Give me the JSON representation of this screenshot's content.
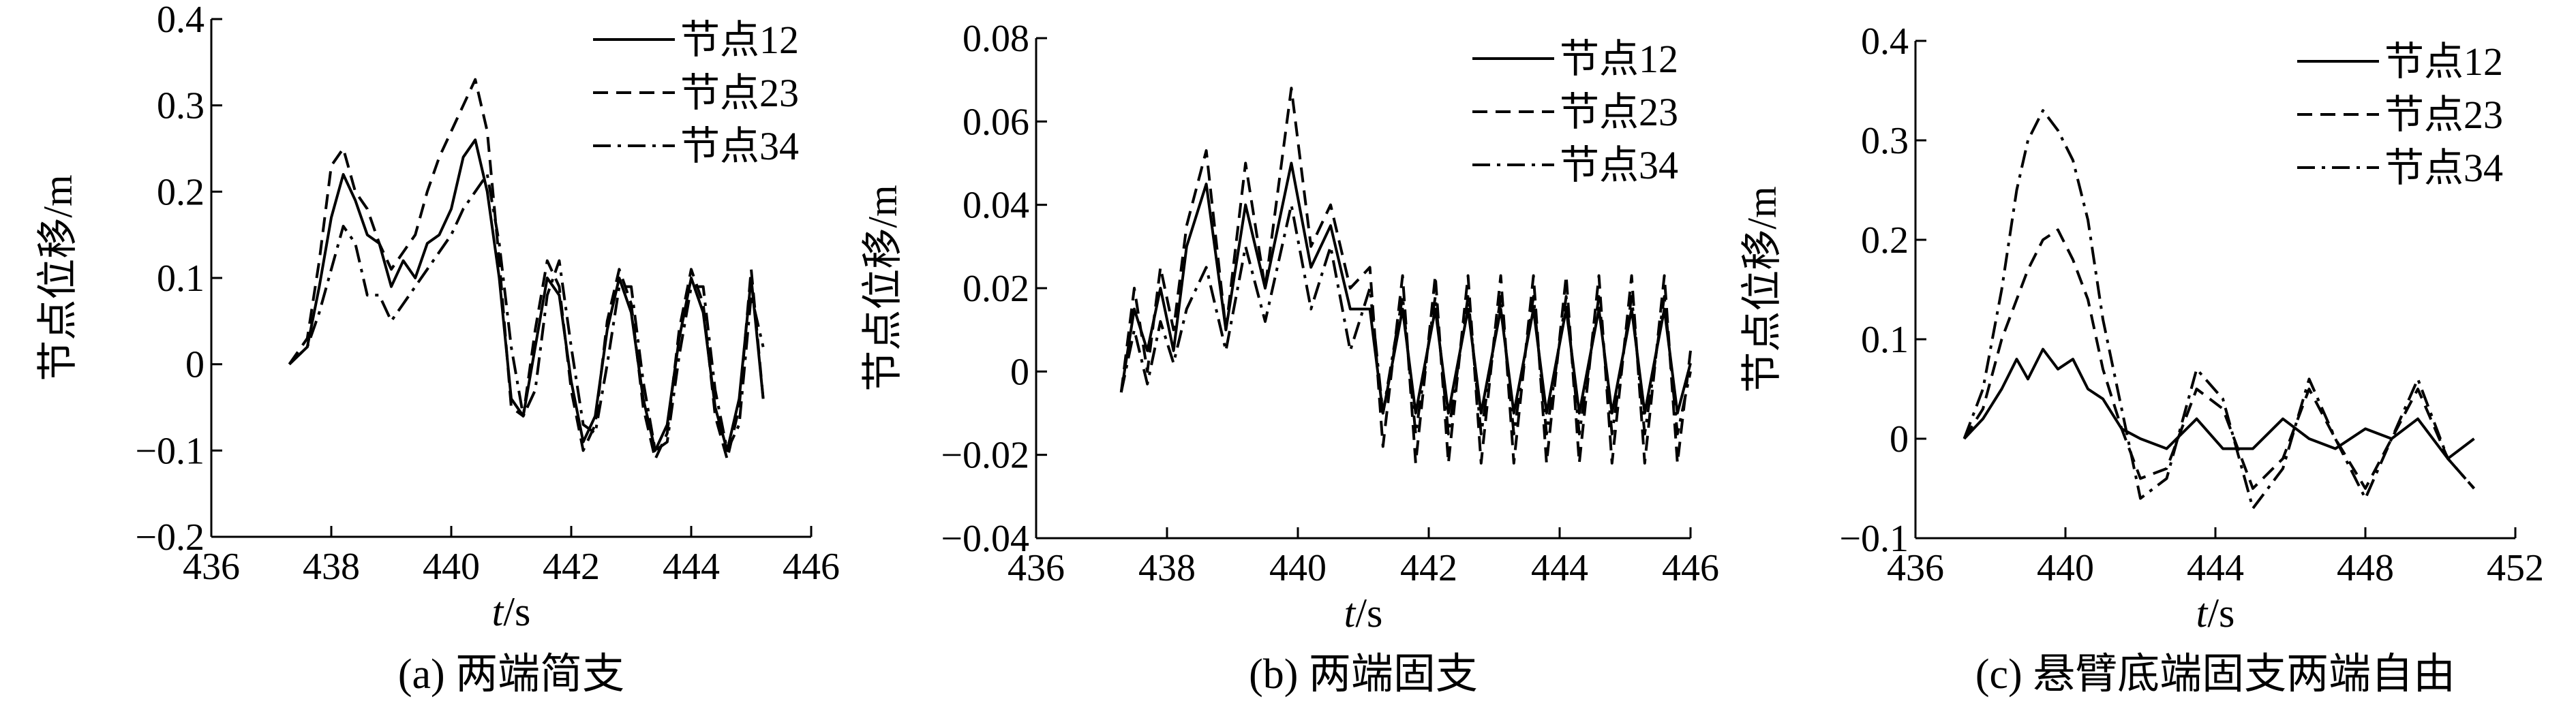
{
  "colors": {
    "ink": "#000000",
    "background": "#ffffff"
  },
  "chart_data": [
    {
      "type": "line",
      "caption": "(a) 两端简支",
      "xlabel_italic": "t",
      "xlabel_unit": "/s",
      "ylabel": "节点位移/m",
      "xlim": [
        436,
        446
      ],
      "ylim": [
        -0.2,
        0.4
      ],
      "xticks": [
        436,
        438,
        440,
        442,
        444,
        446
      ],
      "xtick_labels": [
        "436",
        "438",
        "440",
        "442",
        "444",
        "446"
      ],
      "yticks": [
        -0.2,
        -0.1,
        0,
        0.1,
        0.2,
        0.3,
        0.4
      ],
      "ytick_labels": [
        "−0.2",
        "−0.1",
        "0",
        "0.1",
        "0.2",
        "0.3",
        "0.4"
      ],
      "legend_position": "top-right",
      "grid": false,
      "series": [
        {
          "name": "节点12",
          "style": "solid",
          "x": [
            437.3,
            437.6,
            437.8,
            438.0,
            438.2,
            438.4,
            438.6,
            438.8,
            439.0,
            439.2,
            439.4,
            439.6,
            439.8,
            440.0,
            440.2,
            440.4,
            440.6,
            440.8,
            441.0,
            441.2,
            441.4,
            441.6,
            441.8,
            442.0,
            442.2,
            442.4,
            442.6,
            442.8,
            443.0,
            443.2,
            443.4,
            443.6,
            443.8,
            444.0,
            444.2,
            444.4,
            444.6,
            444.8,
            445.0,
            445.2
          ],
          "values": [
            0.0,
            0.02,
            0.09,
            0.17,
            0.22,
            0.19,
            0.15,
            0.14,
            0.09,
            0.12,
            0.1,
            0.14,
            0.15,
            0.18,
            0.24,
            0.26,
            0.2,
            0.1,
            -0.04,
            -0.06,
            0.02,
            0.1,
            0.08,
            -0.02,
            -0.09,
            -0.06,
            0.04,
            0.1,
            0.06,
            -0.04,
            -0.1,
            -0.07,
            0.03,
            0.1,
            0.06,
            -0.05,
            -0.1,
            -0.04,
            0.1,
            -0.04
          ]
        },
        {
          "name": "节点23",
          "style": "dashed",
          "x": [
            437.3,
            437.6,
            437.8,
            438.0,
            438.2,
            438.4,
            438.6,
            438.8,
            439.0,
            439.2,
            439.4,
            439.6,
            439.8,
            440.0,
            440.2,
            440.4,
            440.6,
            440.8,
            441.0,
            441.2,
            441.4,
            441.6,
            441.8,
            442.0,
            442.2,
            442.4,
            442.6,
            442.8,
            443.0,
            443.2,
            443.4,
            443.6,
            443.8,
            444.0,
            444.2,
            444.4,
            444.6,
            444.8,
            445.0,
            445.2
          ],
          "values": [
            0.0,
            0.03,
            0.12,
            0.23,
            0.25,
            0.2,
            0.18,
            0.14,
            0.11,
            0.13,
            0.15,
            0.2,
            0.24,
            0.27,
            0.3,
            0.33,
            0.27,
            0.12,
            -0.05,
            -0.06,
            0.04,
            0.12,
            0.09,
            -0.03,
            -0.1,
            -0.07,
            0.05,
            0.11,
            0.07,
            -0.05,
            -0.11,
            -0.08,
            0.04,
            0.11,
            0.07,
            -0.06,
            -0.11,
            -0.05,
            0.11,
            -0.04
          ]
        },
        {
          "name": "节点34",
          "style": "dashdot",
          "x": [
            437.3,
            437.6,
            437.8,
            438.0,
            438.2,
            438.4,
            438.6,
            438.8,
            439.0,
            439.2,
            439.4,
            439.6,
            439.8,
            440.0,
            440.2,
            440.4,
            440.6,
            440.8,
            441.0,
            441.2,
            441.4,
            441.6,
            441.8,
            442.0,
            442.2,
            442.4,
            442.6,
            442.8,
            443.0,
            443.2,
            443.4,
            443.6,
            443.8,
            444.0,
            444.2,
            444.4,
            444.6,
            444.8,
            445.0,
            445.2
          ],
          "values": [
            0.0,
            0.02,
            0.06,
            0.11,
            0.16,
            0.14,
            0.08,
            0.08,
            0.05,
            0.07,
            0.09,
            0.11,
            0.13,
            0.15,
            0.18,
            0.2,
            0.22,
            0.14,
            0.02,
            -0.06,
            -0.03,
            0.08,
            0.12,
            0.02,
            -0.07,
            -0.08,
            0.0,
            0.09,
            0.09,
            -0.02,
            -0.1,
            -0.09,
            0.01,
            0.09,
            0.09,
            -0.03,
            -0.1,
            -0.07,
            0.08,
            0.02
          ]
        }
      ]
    },
    {
      "type": "line",
      "caption": "(b) 两端固支",
      "xlabel_italic": "t",
      "xlabel_unit": "/s",
      "ylabel": "节点位移/m",
      "xlim": [
        436,
        446
      ],
      "ylim": [
        -0.04,
        0.08
      ],
      "xticks": [
        436,
        438,
        440,
        442,
        444,
        446
      ],
      "xtick_labels": [
        "436",
        "438",
        "440",
        "442",
        "444",
        "446"
      ],
      "yticks": [
        -0.04,
        -0.02,
        0,
        0.02,
        0.04,
        0.06,
        0.08
      ],
      "ytick_labels": [
        "−0.04",
        "−0.02",
        "0",
        "0.02",
        "0.04",
        "0.06",
        "0.08"
      ],
      "legend_position": "top-right",
      "grid": false,
      "series": [
        {
          "name": "节点12",
          "style": "solid",
          "x": [
            437.3,
            437.5,
            437.7,
            437.9,
            438.1,
            438.3,
            438.6,
            438.9,
            439.2,
            439.5,
            439.9,
            440.2,
            440.5,
            440.8,
            441.1,
            441.3,
            441.6,
            441.8,
            442.1,
            442.3,
            442.6,
            442.8,
            443.1,
            443.3,
            443.6,
            443.8,
            444.1,
            444.3,
            444.6,
            444.8,
            445.1,
            445.3,
            445.6,
            445.8,
            446.0
          ],
          "values": [
            -0.005,
            0.015,
            0.005,
            0.02,
            0.005,
            0.03,
            0.045,
            0.01,
            0.04,
            0.02,
            0.05,
            0.025,
            0.035,
            0.015,
            0.015,
            -0.01,
            0.015,
            -0.01,
            0.015,
            -0.01,
            0.015,
            -0.01,
            0.015,
            -0.01,
            0.015,
            -0.01,
            0.015,
            -0.01,
            0.015,
            -0.01,
            0.015,
            -0.01,
            0.015,
            -0.01,
            0.002
          ]
        },
        {
          "name": "节点23",
          "style": "dashed",
          "x": [
            437.3,
            437.5,
            437.7,
            437.9,
            438.1,
            438.3,
            438.6,
            438.9,
            439.2,
            439.5,
            439.9,
            440.2,
            440.5,
            440.8,
            441.1,
            441.3,
            441.6,
            441.8,
            442.1,
            442.3,
            442.6,
            442.8,
            443.1,
            443.3,
            443.6,
            443.8,
            444.1,
            444.3,
            444.6,
            444.8,
            445.1,
            445.3,
            445.6,
            445.8,
            446.0
          ],
          "values": [
            -0.005,
            0.02,
            0.0,
            0.025,
            0.01,
            0.035,
            0.053,
            0.01,
            0.05,
            0.02,
            0.068,
            0.03,
            0.04,
            0.02,
            0.025,
            -0.018,
            0.023,
            -0.022,
            0.023,
            -0.022,
            0.023,
            -0.022,
            0.023,
            -0.022,
            0.023,
            -0.022,
            0.023,
            -0.022,
            0.023,
            -0.022,
            0.023,
            -0.022,
            0.023,
            -0.022,
            0.005
          ]
        },
        {
          "name": "节点34",
          "style": "dashdot",
          "x": [
            437.3,
            437.5,
            437.7,
            437.9,
            438.1,
            438.3,
            438.6,
            438.9,
            439.2,
            439.5,
            439.9,
            440.2,
            440.5,
            440.8,
            441.1,
            441.3,
            441.6,
            441.8,
            442.1,
            442.3,
            442.6,
            442.8,
            443.1,
            443.3,
            443.6,
            443.8,
            444.1,
            444.3,
            444.6,
            444.8,
            445.1,
            445.3,
            445.6,
            445.8,
            446.0
          ],
          "values": [
            -0.005,
            0.01,
            -0.003,
            0.012,
            0.002,
            0.015,
            0.025,
            0.005,
            0.03,
            0.012,
            0.04,
            0.015,
            0.03,
            0.005,
            0.02,
            -0.01,
            0.018,
            -0.015,
            0.018,
            -0.015,
            0.018,
            -0.015,
            0.018,
            -0.015,
            0.018,
            -0.015,
            0.018,
            -0.015,
            0.018,
            -0.015,
            0.018,
            -0.015,
            0.018,
            -0.015,
            0.0
          ]
        }
      ]
    },
    {
      "type": "line",
      "caption": "(c) 悬臂底端固支两端自由",
      "xlabel_italic": "t",
      "xlabel_unit": "/s",
      "ylabel": "节点位移/m",
      "xlim": [
        436,
        452
      ],
      "ylim": [
        -0.1,
        0.4
      ],
      "xticks": [
        436,
        440,
        444,
        448,
        452
      ],
      "xtick_labels": [
        "436",
        "440",
        "444",
        "448",
        "452"
      ],
      "yticks": [
        -0.1,
        0,
        0.1,
        0.2,
        0.3,
        0.4
      ],
      "ytick_labels": [
        "−0.1",
        "0",
        "0.1",
        "0.2",
        "0.3",
        "0.4"
      ],
      "legend_position": "top-right",
      "grid": false,
      "series": [
        {
          "name": "节点12",
          "style": "solid",
          "x": [
            437.3,
            437.8,
            438.3,
            438.7,
            439.0,
            439.4,
            439.8,
            440.2,
            440.6,
            441.0,
            441.5,
            442.0,
            442.7,
            443.5,
            444.2,
            445.0,
            445.8,
            446.5,
            447.2,
            448.0,
            448.7,
            449.4,
            450.2,
            450.9
          ],
          "values": [
            0.0,
            0.02,
            0.05,
            0.08,
            0.06,
            0.09,
            0.07,
            0.08,
            0.05,
            0.04,
            0.01,
            0.0,
            -0.01,
            0.02,
            -0.01,
            -0.01,
            0.02,
            0.0,
            -0.01,
            0.01,
            0.0,
            0.02,
            -0.02,
            0.0
          ]
        },
        {
          "name": "节点23",
          "style": "dashed",
          "x": [
            437.3,
            437.8,
            438.3,
            438.7,
            439.0,
            439.4,
            439.8,
            440.2,
            440.6,
            441.0,
            441.5,
            442.0,
            442.7,
            443.5,
            444.2,
            445.0,
            445.8,
            446.5,
            447.2,
            448.0,
            448.7,
            449.4,
            450.2,
            450.9
          ],
          "values": [
            0.0,
            0.03,
            0.1,
            0.14,
            0.17,
            0.2,
            0.21,
            0.18,
            0.14,
            0.07,
            0.01,
            -0.04,
            -0.03,
            0.05,
            0.03,
            -0.05,
            -0.02,
            0.05,
            0.0,
            -0.05,
            0.0,
            0.05,
            -0.02,
            -0.05
          ]
        },
        {
          "name": "节点34",
          "style": "dashdot",
          "x": [
            437.3,
            437.8,
            438.3,
            438.7,
            439.0,
            439.4,
            439.8,
            440.2,
            440.6,
            441.0,
            441.5,
            442.0,
            442.7,
            443.5,
            444.2,
            445.0,
            445.8,
            446.5,
            447.2,
            448.0,
            448.7,
            449.4,
            450.2,
            450.9
          ],
          "values": [
            0.0,
            0.05,
            0.15,
            0.25,
            0.3,
            0.33,
            0.31,
            0.28,
            0.22,
            0.12,
            0.03,
            -0.06,
            -0.04,
            0.07,
            0.04,
            -0.07,
            -0.03,
            0.06,
            0.0,
            -0.06,
            0.0,
            0.06,
            -0.02,
            -0.05
          ]
        }
      ]
    }
  ]
}
